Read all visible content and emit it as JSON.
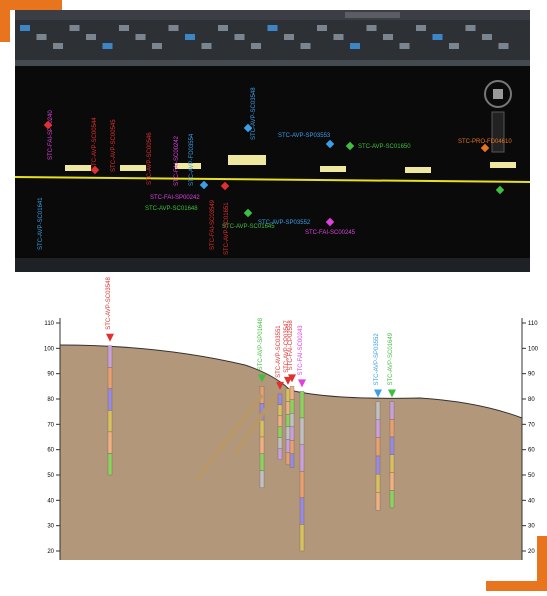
{
  "plan": {
    "labels": [
      "STC-AVP-SC03548",
      "STC-AVP-SP03553",
      "STC-AVP-SC01650",
      "STC-PRO-FD04610",
      "STC-AVP-SP03552",
      "STC-FAI-SC00245",
      "STC-AVP-SC01645",
      "STC-FAI-SP00242",
      "STC-AVP-SC01641",
      "STC-FAI-SP00240",
      "STC-AVP-SC00544",
      "STC-AVP-SC00545",
      "STC-AVP-SC00546",
      "STC-FAI-SC00242",
      "STC-AVP-FD03554",
      "STC-FAI-SC03549",
      "STC-AVP-SC01648",
      "STC-AVP-SC01651"
    ]
  },
  "section": {
    "yticks": [
      110,
      100,
      90,
      80,
      70,
      60,
      50,
      40,
      30,
      20
    ],
    "boreholes": [
      "STC-AVP-SC03548",
      "STC-AVP-SP01648",
      "STC-AVP-SC03551",
      "STC-AVP-CP03547",
      "STC-FAI-CP02558",
      "STC-FAI-SC00243",
      "STC-AVP-SP03552",
      "STC-AVP-SC01649"
    ]
  }
}
